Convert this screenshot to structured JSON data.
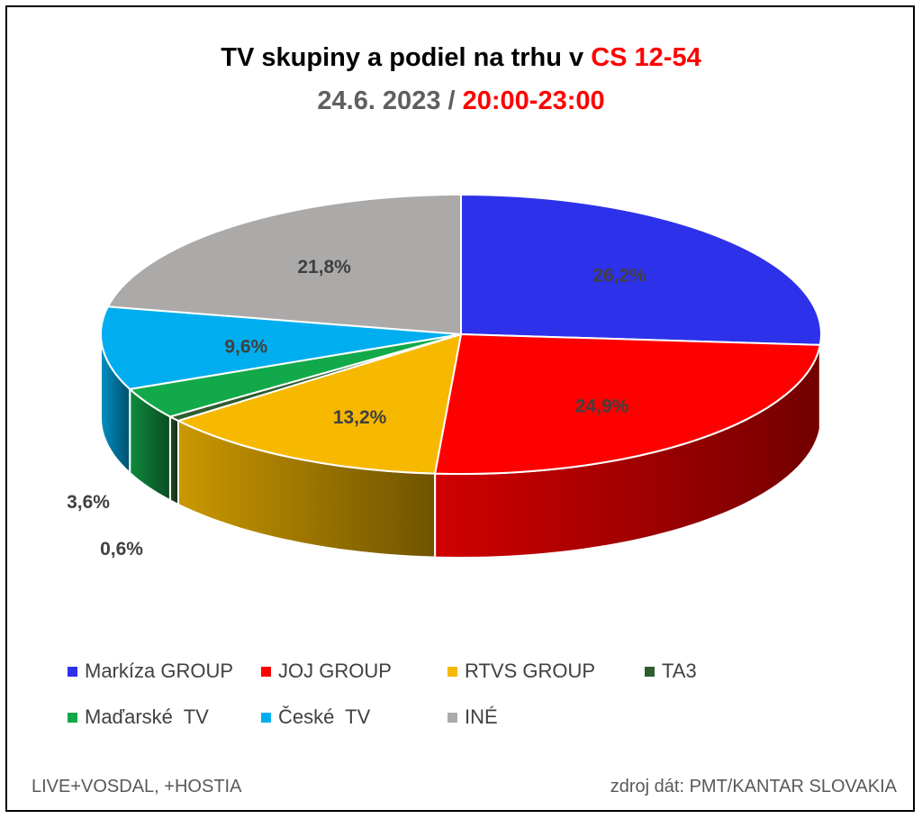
{
  "header": {
    "title_part1": "TV skupiny a podiel na trhu v ",
    "title_part2": "CS 12-54",
    "subtitle_part1": "24.6. 2023 / ",
    "subtitle_part2": "20:00-23:00"
  },
  "chart_data": {
    "type": "pie",
    "style": "3d",
    "title": "TV skupiny a podiel na trhu v CS 12-54",
    "subtitle": "24.6. 2023 / 20:00-23:00",
    "legend_position": "bottom",
    "slices": [
      {
        "name": "Markíza GROUP",
        "value": 26.2,
        "label": "26,2%",
        "color": "#2e31ea"
      },
      {
        "name": "JOJ GROUP",
        "value": 24.9,
        "label": "24,9%",
        "color": "#ff0000"
      },
      {
        "name": "RTVS GROUP",
        "value": 13.2,
        "label": "13,2%",
        "color": "#f6b900"
      },
      {
        "name": "TA3",
        "value": 0.6,
        "label": "0,6%",
        "color": "#2e5d2e"
      },
      {
        "name": "Maďarské  TV",
        "value": 3.6,
        "label": "3,6%",
        "color": "#12a94a"
      },
      {
        "name": "České  TV",
        "value": 9.6,
        "label": "9,6%",
        "color": "#00aeef"
      },
      {
        "name": "INÉ",
        "value": 21.8,
        "label": "21,8%",
        "color": "#acaaa9"
      }
    ]
  },
  "footer": {
    "left": "LIVE+VOSDAL, +HOSTIA",
    "right": "zdroj dát: PMT/KANTAR SLOVAKIA"
  }
}
